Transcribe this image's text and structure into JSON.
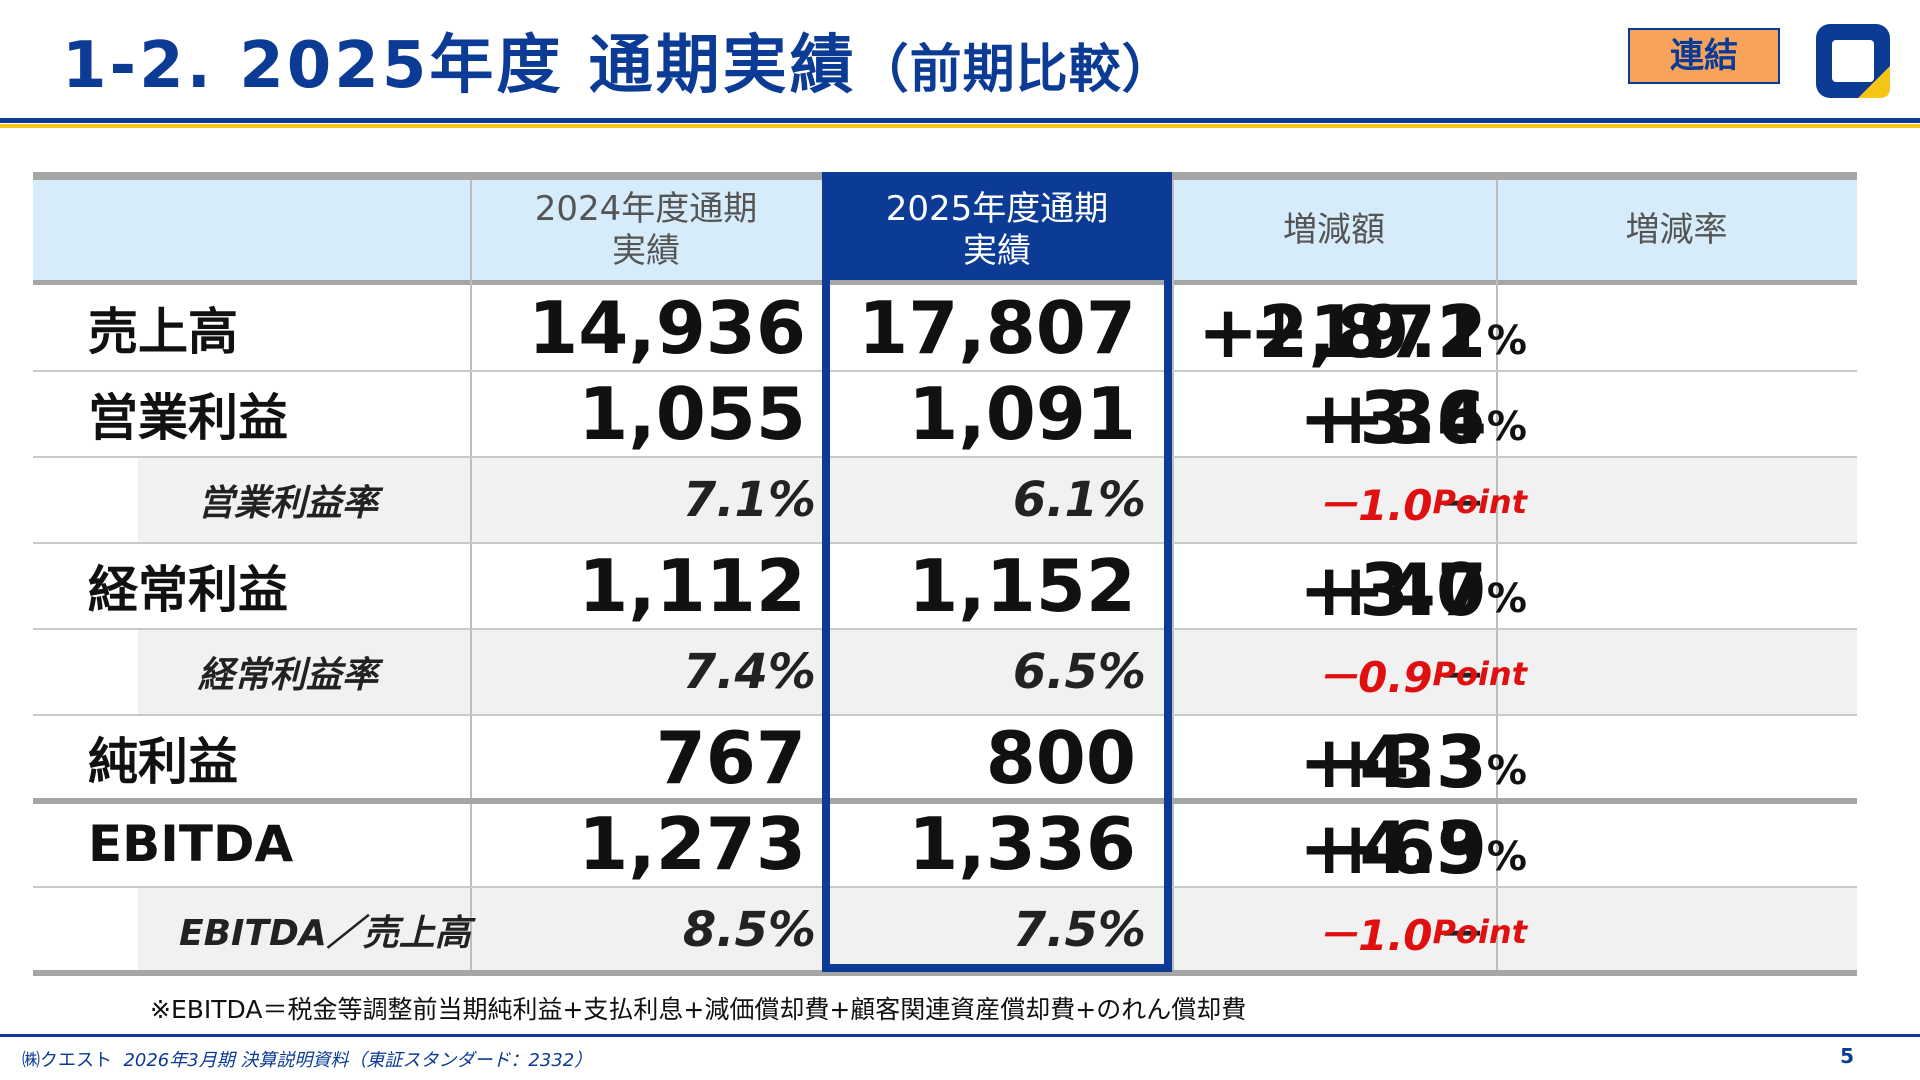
{
  "header": {
    "title_main": "1-2. 2025年度 通期実績",
    "title_paren": "（前期比較）",
    "badge": "連結",
    "logo_icon": "quest-logo-icon",
    "colors": {
      "brand": "#0b3b94",
      "accent_yellow": "#f5c518",
      "badge_bg": "#f7a35c",
      "negative": "#e01010"
    }
  },
  "table": {
    "columns": [
      "",
      "2024年度通期\n実績",
      "2025年度通期\n実績",
      "増減額",
      "増減率"
    ],
    "rows": [
      {
        "label": "売上高",
        "prev": "14,936",
        "curr": "17,807",
        "diff": "+2,871",
        "rate": "+19.2",
        "rate_unit": "%"
      },
      {
        "label": "営業利益",
        "prev": "1,055",
        "curr": "1,091",
        "diff": "+36",
        "rate": "+3.4",
        "rate_unit": "%"
      },
      {
        "label": "営業利益率",
        "prev": "7.1%",
        "curr": "6.1%",
        "diff": "－",
        "rate": "－1.0",
        "rate_unit": "Point"
      },
      {
        "label": "経常利益",
        "prev": "1,112",
        "curr": "1,152",
        "diff": "+40",
        "rate": "+3.7",
        "rate_unit": "%"
      },
      {
        "label": "経常利益率",
        "prev": "7.4%",
        "curr": "6.5%",
        "diff": "－",
        "rate": "－0.9",
        "rate_unit": "Point"
      },
      {
        "label": "純利益",
        "prev": "767",
        "curr": "800",
        "diff": "+33",
        "rate": "+4.3",
        "rate_unit": "%"
      },
      {
        "label": "EBITDA",
        "prev": "1,273",
        "curr": "1,336",
        "diff": "+63",
        "rate": "+4.9",
        "rate_unit": "%"
      },
      {
        "label": "EBITDA／売上高",
        "prev": "8.5%",
        "curr": "7.5%",
        "diff": "－",
        "rate": "－1.0",
        "rate_unit": "Point"
      }
    ]
  },
  "footnote": "※EBITDA＝税金等調整前当期純利益+支払利息+減価償却費+顧客関連資産償却費+のれん償却費",
  "footer": {
    "company": "㈱クエスト",
    "doc": "2026年3月期 決算説明資料（東証スタンダード：2332）",
    "page": "5"
  }
}
